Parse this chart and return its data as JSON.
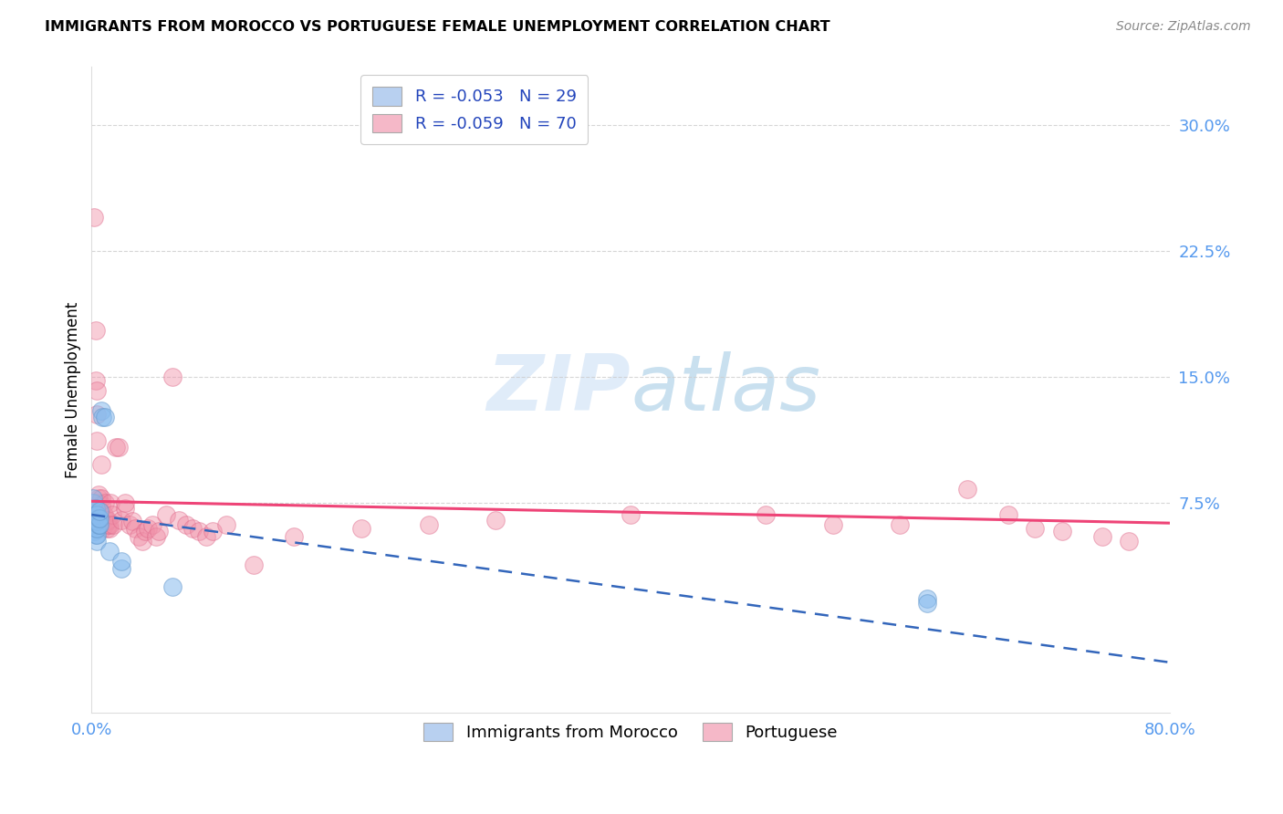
{
  "title": "IMMIGRANTS FROM MOROCCO VS PORTUGUESE FEMALE UNEMPLOYMENT CORRELATION CHART",
  "source": "Source: ZipAtlas.com",
  "tick_color": "#5599ee",
  "ylabel": "Female Unemployment",
  "y_tick_labels": [
    "7.5%",
    "15.0%",
    "22.5%",
    "30.0%"
  ],
  "y_tick_values": [
    0.075,
    0.15,
    0.225,
    0.3
  ],
  "xlim": [
    0.0,
    0.8
  ],
  "ylim": [
    -0.05,
    0.335
  ],
  "watermark": "ZIPatlas",
  "legend_line1": "R = -0.053   N = 29",
  "legend_line2": "R = -0.059   N = 70",
  "legend_color1": "#b8d0f0",
  "legend_color2": "#f5b8c8",
  "blue_color": "#88bbee",
  "pink_color": "#f090a8",
  "blue_edge_color": "#6699cc",
  "pink_edge_color": "#dd6688",
  "blue_line_color": "#3366bb",
  "pink_line_color": "#ee4477",
  "grid_color": "#cccccc",
  "background_color": "#ffffff",
  "blue_points_x": [
    0.001,
    0.001,
    0.002,
    0.002,
    0.002,
    0.003,
    0.003,
    0.003,
    0.003,
    0.003,
    0.004,
    0.004,
    0.004,
    0.004,
    0.004,
    0.005,
    0.005,
    0.006,
    0.006,
    0.006,
    0.007,
    0.008,
    0.01,
    0.013,
    0.022,
    0.022,
    0.06,
    0.62,
    0.62
  ],
  "blue_points_y": [
    0.075,
    0.078,
    0.058,
    0.062,
    0.066,
    0.056,
    0.06,
    0.065,
    0.068,
    0.072,
    0.052,
    0.056,
    0.06,
    0.064,
    0.068,
    0.062,
    0.066,
    0.062,
    0.066,
    0.07,
    0.13,
    0.126,
    0.126,
    0.046,
    0.036,
    0.04,
    0.025,
    0.018,
    0.015
  ],
  "pink_points_x": [
    0.002,
    0.003,
    0.003,
    0.004,
    0.004,
    0.004,
    0.005,
    0.005,
    0.005,
    0.005,
    0.005,
    0.006,
    0.006,
    0.006,
    0.007,
    0.007,
    0.007,
    0.008,
    0.008,
    0.009,
    0.01,
    0.01,
    0.011,
    0.011,
    0.012,
    0.012,
    0.013,
    0.013,
    0.014,
    0.015,
    0.016,
    0.018,
    0.02,
    0.022,
    0.025,
    0.025,
    0.028,
    0.03,
    0.032,
    0.035,
    0.038,
    0.04,
    0.042,
    0.045,
    0.048,
    0.05,
    0.055,
    0.06,
    0.065,
    0.07,
    0.075,
    0.08,
    0.085,
    0.09,
    0.1,
    0.12,
    0.15,
    0.2,
    0.25,
    0.3,
    0.4,
    0.5,
    0.55,
    0.6,
    0.65,
    0.68,
    0.7,
    0.72,
    0.75,
    0.77
  ],
  "pink_points_y": [
    0.245,
    0.178,
    0.148,
    0.128,
    0.142,
    0.112,
    0.07,
    0.072,
    0.075,
    0.078,
    0.08,
    0.062,
    0.065,
    0.068,
    0.074,
    0.078,
    0.098,
    0.06,
    0.064,
    0.068,
    0.062,
    0.075,
    0.06,
    0.064,
    0.062,
    0.065,
    0.06,
    0.062,
    0.075,
    0.068,
    0.062,
    0.108,
    0.108,
    0.065,
    0.072,
    0.075,
    0.062,
    0.064,
    0.06,
    0.055,
    0.052,
    0.058,
    0.06,
    0.062,
    0.055,
    0.058,
    0.068,
    0.15,
    0.065,
    0.062,
    0.06,
    0.058,
    0.055,
    0.058,
    0.062,
    0.038,
    0.055,
    0.06,
    0.062,
    0.065,
    0.068,
    0.068,
    0.062,
    0.062,
    0.083,
    0.068,
    0.06,
    0.058,
    0.055,
    0.052
  ],
  "blue_trend_x0": 0.0,
  "blue_trend_x1": 0.8,
  "blue_trend_y0": 0.068,
  "blue_trend_y1": -0.02,
  "pink_trend_x0": 0.0,
  "pink_trend_x1": 0.8,
  "pink_trend_y0": 0.076,
  "pink_trend_y1": 0.063
}
